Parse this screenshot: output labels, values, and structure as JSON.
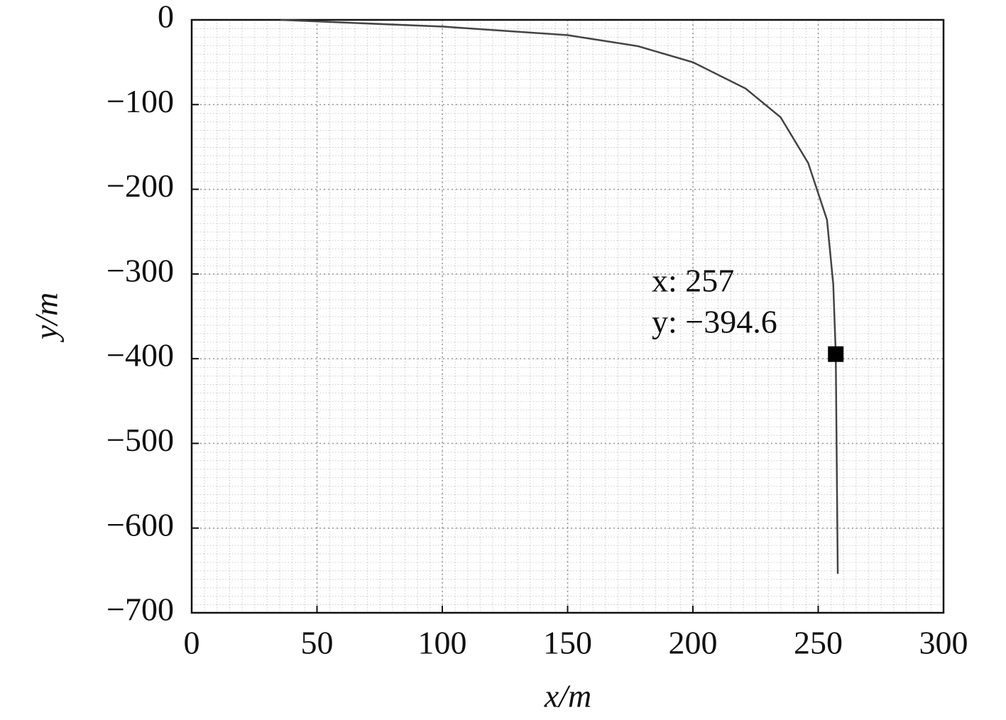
{
  "chart_data": {
    "type": "line",
    "x_label": "x/m",
    "y_label": "y/m",
    "xlim": [
      0,
      300
    ],
    "xticks": [
      0,
      50,
      100,
      150,
      200,
      250,
      300
    ],
    "ylim": [
      -700,
      0
    ],
    "yticks": [
      {
        "value": -700,
        "label": "−700"
      },
      {
        "value": -600,
        "label": "−600"
      },
      {
        "value": -500,
        "label": "−500"
      },
      {
        "value": -400,
        "label": "−400"
      },
      {
        "value": -300,
        "label": "−300"
      },
      {
        "value": -200,
        "label": "−200"
      },
      {
        "value": -100,
        "label": "−100"
      },
      0
    ],
    "grid": true,
    "series": [
      {
        "color": "#444444",
        "x": [
          35.4,
          100.6,
          150,
          178,
          200,
          221,
          235,
          246,
          253.5,
          256,
          257,
          257.8
        ],
        "values": [
          0,
          -8,
          -18,
          -31,
          -50,
          -81,
          -115,
          -169,
          -236,
          -312,
          -394.6,
          -654
        ]
      }
    ],
    "marker": {
      "x": 257,
      "y": -394.6,
      "color": "#000000"
    },
    "annotation": [
      "x: 257",
      "y: −394.6"
    ]
  }
}
